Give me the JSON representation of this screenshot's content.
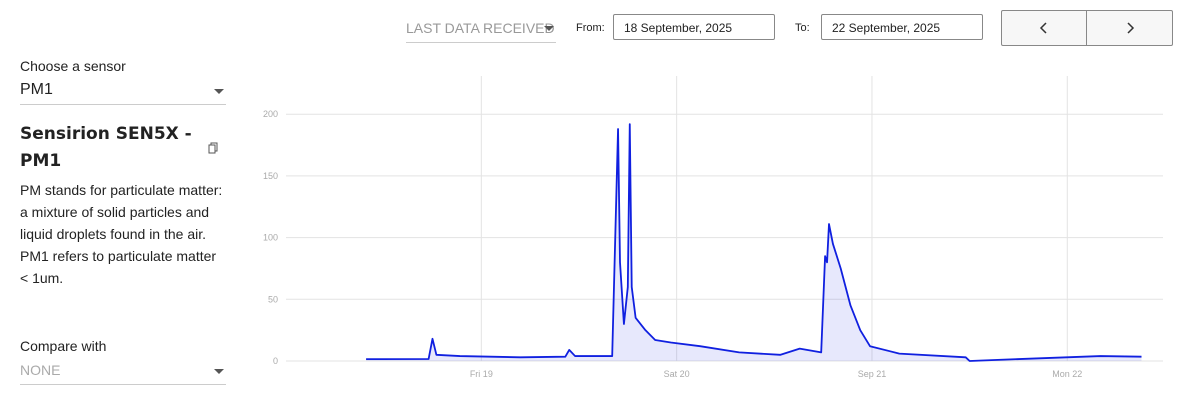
{
  "header": {
    "range_select": "LAST DATA RECEIVED",
    "from_label": "From:",
    "from_value": "18 September, 2025",
    "to_label": "To:",
    "to_value": "22 September, 2025"
  },
  "sidebar": {
    "sensor_label": "Choose a sensor",
    "sensor_value": "PM1",
    "sensor_title": "Sensirion SEN5X - PM1",
    "description": "PM stands for particulate matter: a mixture of solid particles and liquid droplets found in the air. PM1 refers to particulate matter < 1um.",
    "compare_label": "Compare with",
    "compare_value": "NONE"
  },
  "chart_data": {
    "type": "area",
    "x": [
      18.41,
      18.73,
      18.75,
      18.77,
      18.89,
      19.2,
      19.43,
      19.45,
      19.48,
      19.67,
      19.7,
      19.71,
      19.73,
      19.75,
      19.76,
      19.77,
      19.79,
      19.84,
      19.89,
      19.97,
      20.12,
      20.32,
      20.53,
      20.63,
      20.74,
      20.76,
      20.77,
      20.78,
      20.8,
      20.84,
      20.89,
      20.94,
      20.99,
      21.14,
      21.48,
      21.5,
      21.66,
      21.91,
      22.17,
      22.38
    ],
    "series": [
      {
        "color": "#1020e0",
        "values": [
          1.5,
          1.6,
          18,
          5,
          4,
          3,
          3.5,
          9,
          4,
          4,
          188,
          80,
          30,
          60,
          192,
          60,
          35,
          25,
          17,
          15,
          12,
          7,
          5,
          10,
          7,
          85,
          80,
          111,
          95,
          75,
          45,
          25,
          12,
          6,
          3,
          0,
          1,
          2.5,
          4,
          3.5
        ]
      }
    ],
    "xlim": [
      18,
      22.49
    ],
    "xticks": [
      {
        "value": 19,
        "label": "Fri 19"
      },
      {
        "value": 20,
        "label": "Sat 20"
      },
      {
        "value": 21,
        "label": "Sep 21"
      },
      {
        "value": 22,
        "label": "Mon 22"
      }
    ],
    "ylim": [
      0,
      231
    ],
    "yticks": [
      0,
      50,
      100,
      150,
      200
    ],
    "grid": true
  }
}
